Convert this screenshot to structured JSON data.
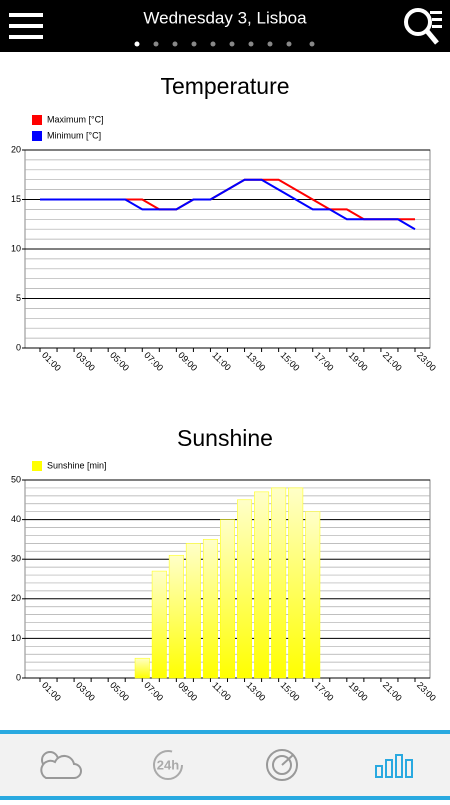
{
  "header": {
    "title": "Wednesday 3, Lisboa"
  },
  "tab_bar": {
    "label_24h": "24h"
  },
  "chart_data": [
    {
      "type": "line",
      "title": "Temperature",
      "categories": [
        "01:00",
        null,
        "03:00",
        null,
        "05:00",
        null,
        "07:00",
        null,
        "09:00",
        null,
        "11:00",
        null,
        "13:00",
        null,
        "15:00",
        null,
        "17:00",
        null,
        "19:00",
        null,
        "21:00",
        null,
        "23:00"
      ],
      "series": [
        {
          "name": "Maximum [°C]",
          "color": "#ff0000",
          "values": [
            15,
            15,
            15,
            15,
            15,
            15,
            15,
            14,
            14,
            15,
            15,
            16,
            17,
            17,
            17,
            16,
            15,
            14,
            14,
            13,
            13,
            13,
            13
          ]
        },
        {
          "name": "Minimum [°C]",
          "color": "#0000ff",
          "values": [
            15,
            15,
            15,
            15,
            15,
            15,
            14,
            14,
            14,
            15,
            15,
            16,
            17,
            17,
            16,
            15,
            14,
            14,
            13,
            13,
            13,
            13,
            12
          ]
        }
      ],
      "ylim": [
        0,
        20
      ],
      "yticks": [
        0,
        5,
        10,
        15,
        20
      ],
      "grid": true
    },
    {
      "type": "bar",
      "title": "Sunshine",
      "categories": [
        "01:00",
        null,
        "03:00",
        null,
        "05:00",
        null,
        "07:00",
        null,
        "09:00",
        null,
        "11:00",
        null,
        "13:00",
        null,
        "15:00",
        null,
        "17:00",
        null,
        "19:00",
        null,
        "21:00",
        null,
        "23:00"
      ],
      "series": [
        {
          "name": "Sunshine [min]",
          "color": "#ffff00",
          "values": [
            0,
            0,
            0,
            0,
            0,
            0,
            5,
            27,
            31,
            34,
            35,
            40,
            45,
            47,
            48,
            48,
            42,
            0,
            0,
            0,
            0,
            0,
            0
          ]
        }
      ],
      "ylim": [
        0,
        50
      ],
      "yticks": [
        0,
        10,
        20,
        30,
        40,
        50
      ],
      "grid": true
    }
  ]
}
